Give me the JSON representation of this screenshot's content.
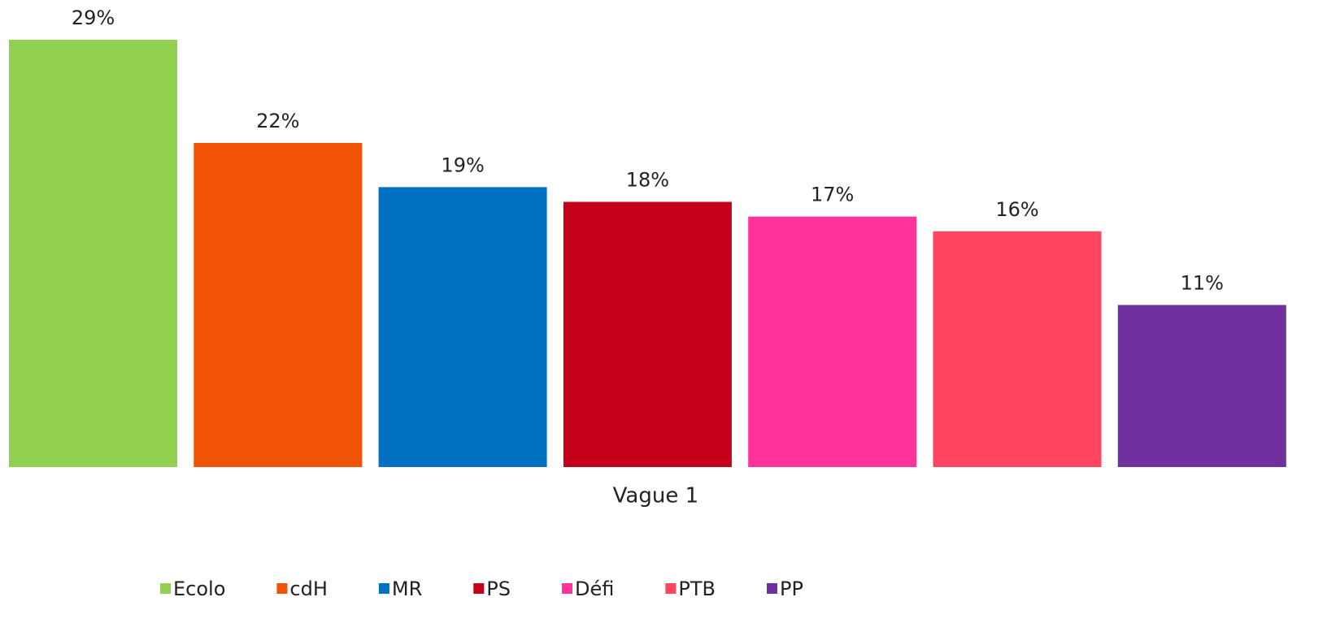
{
  "chart_data": {
    "type": "bar",
    "categories": [
      "Vague 1"
    ],
    "series": [
      {
        "name": "Ecolo",
        "color": "#92d050",
        "values": [
          29
        ],
        "value_labels": [
          "29%"
        ]
      },
      {
        "name": "cdH",
        "color": "#f05206",
        "values": [
          22
        ],
        "value_labels": [
          "22%"
        ]
      },
      {
        "name": "MR",
        "color": "#0070c0",
        "values": [
          19
        ],
        "value_labels": [
          "19%"
        ]
      },
      {
        "name": "PS",
        "color": "#c4001a",
        "values": [
          18
        ],
        "value_labels": [
          "18%"
        ]
      },
      {
        "name": "Défi",
        "color": "#ff3399",
        "values": [
          17
        ],
        "value_labels": [
          "17%"
        ]
      },
      {
        "name": "PTB",
        "color": "#ff4560",
        "values": [
          16
        ],
        "value_labels": [
          "16%"
        ]
      },
      {
        "name": "PP",
        "color": "#7030a0",
        "values": [
          11
        ],
        "value_labels": [
          "11%"
        ]
      }
    ],
    "legend": "bottom"
  }
}
